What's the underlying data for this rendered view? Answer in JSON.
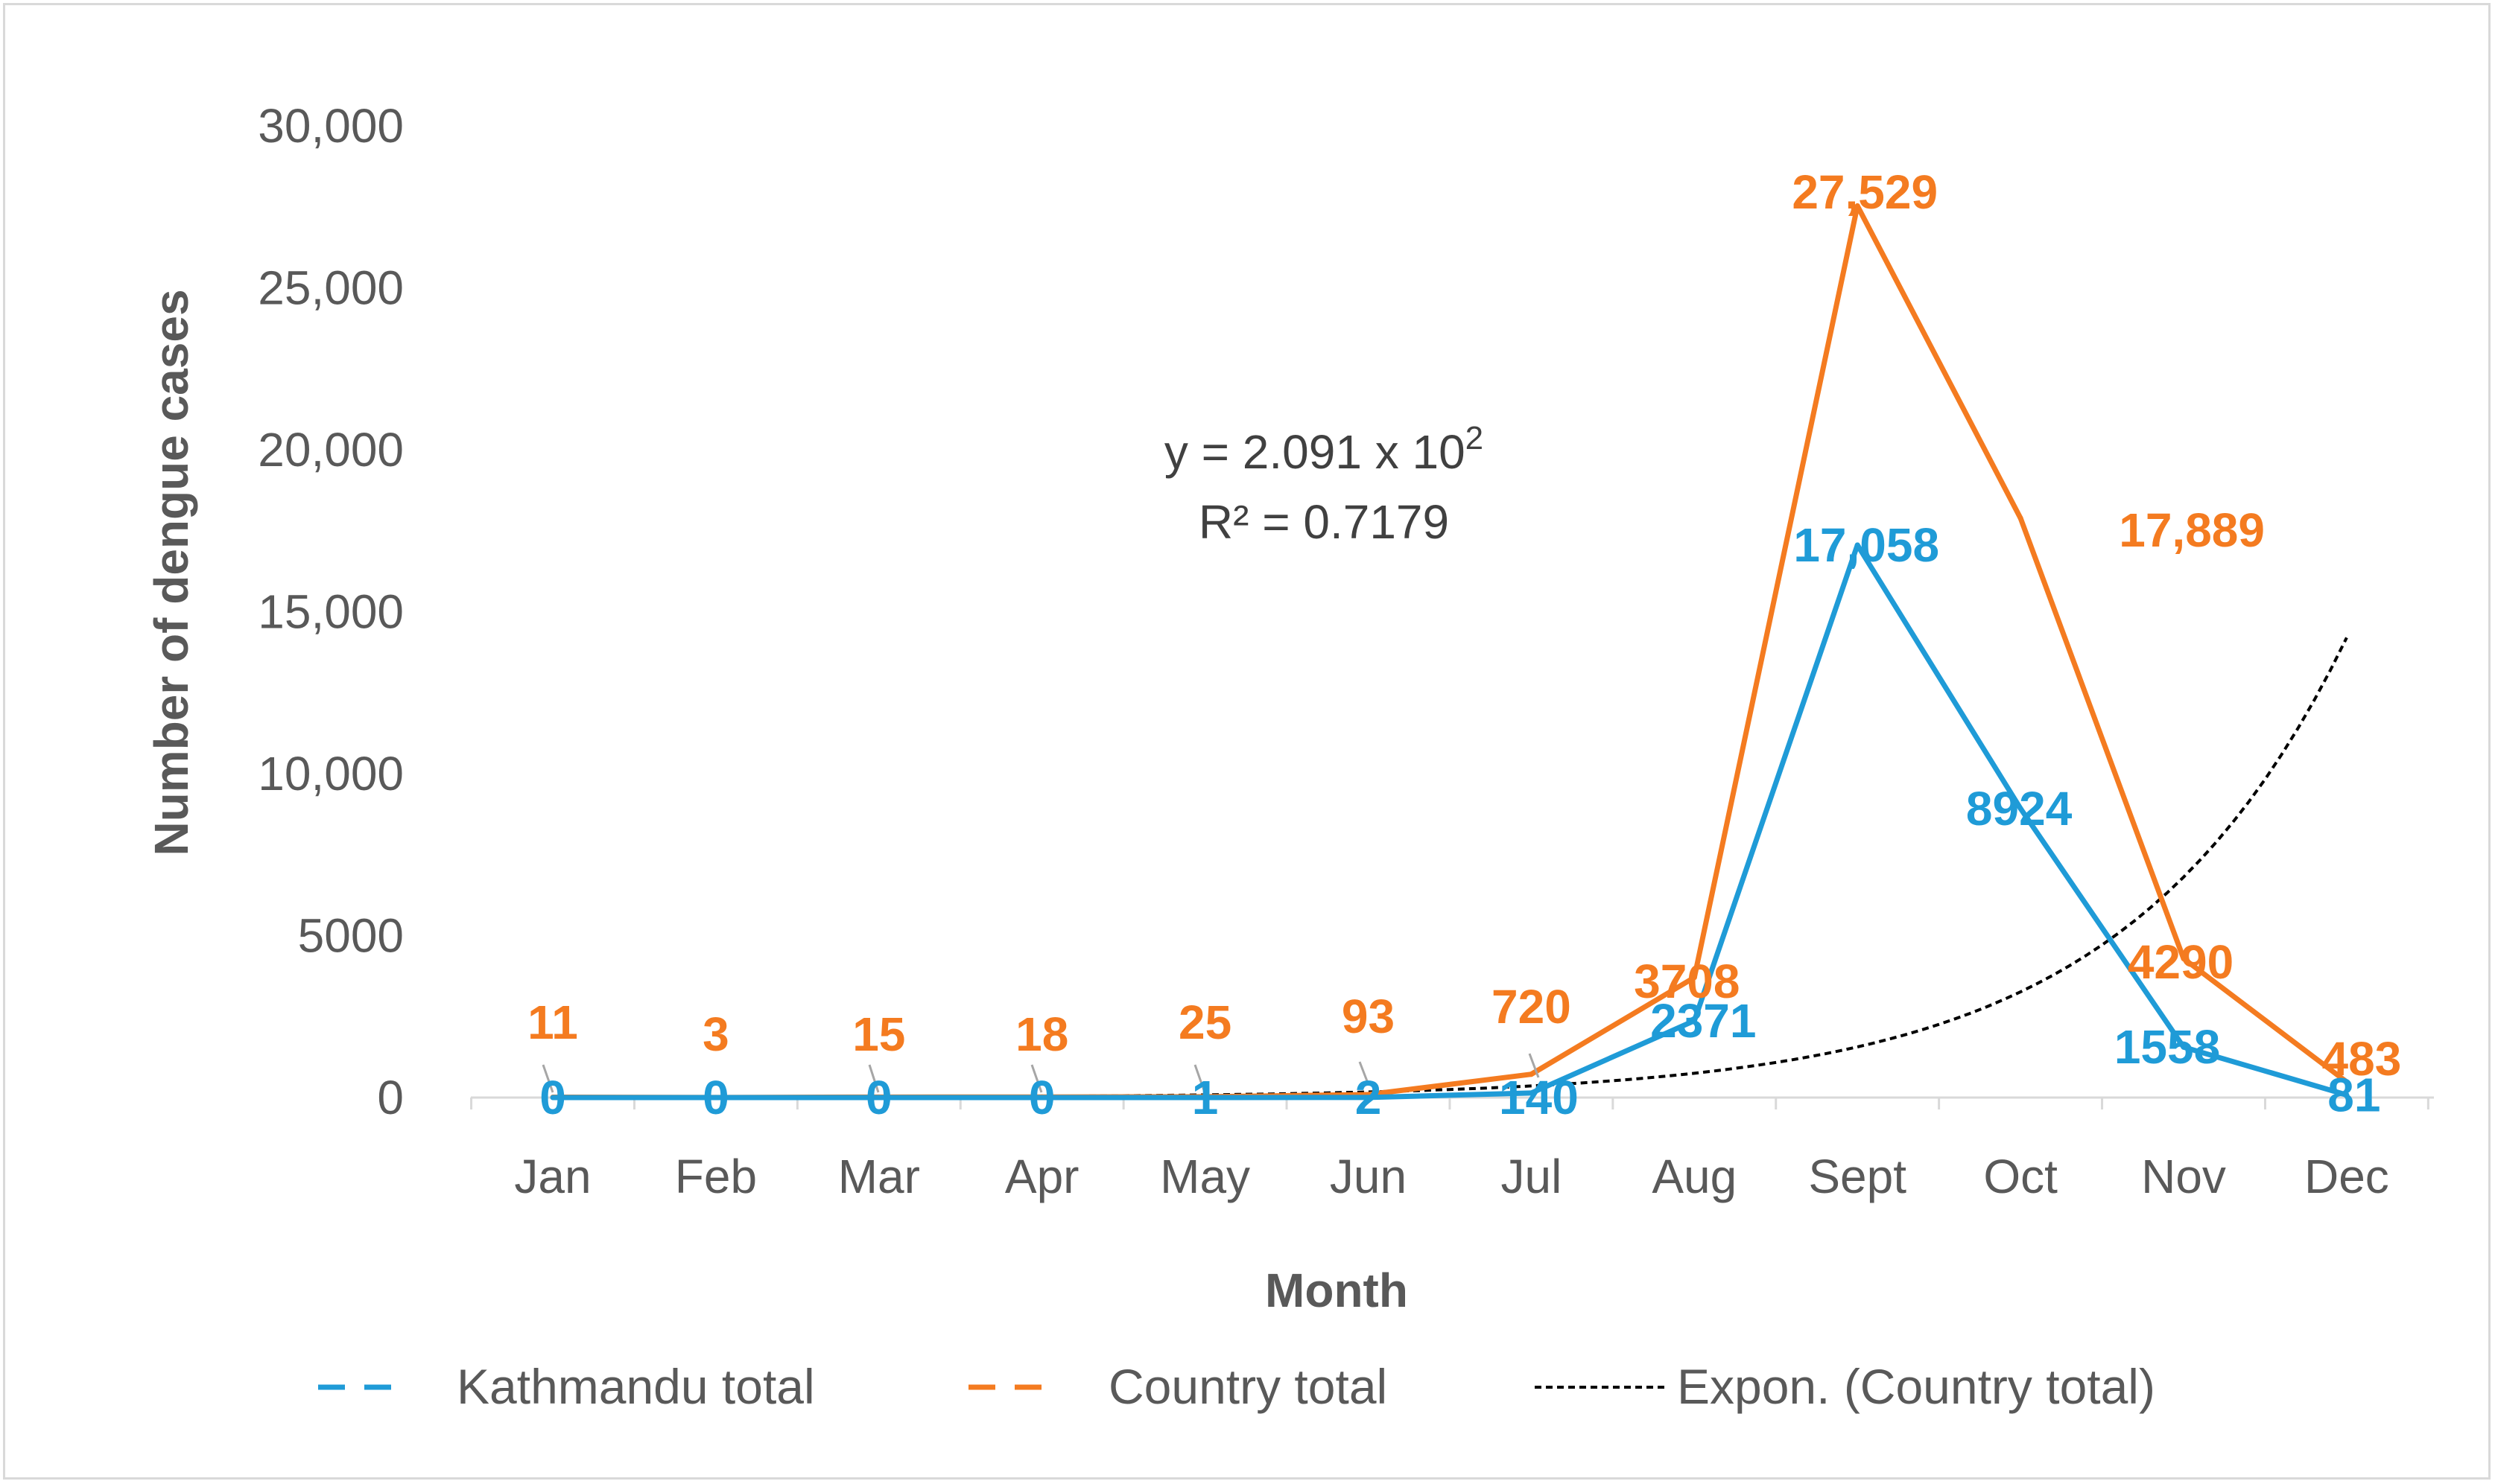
{
  "chart_data": {
    "type": "line",
    "title": "",
    "xlabel": "Month",
    "ylabel": "Number of dengue cases",
    "ylim": [
      0,
      30000
    ],
    "y_ticks": [
      0,
      5000,
      10000,
      15000,
      20000,
      25000,
      30000
    ],
    "y_tick_labels": [
      "0",
      "5000",
      "10,000",
      "15,000",
      "20,000",
      "25,000",
      "30,000"
    ],
    "categories": [
      "Jan",
      "Feb",
      "Mar",
      "Apr",
      "May",
      "Jun",
      "Jul",
      "Aug",
      "Sept",
      "Oct",
      "Nov",
      "Dec"
    ],
    "series": [
      {
        "name": "Kathmandu total",
        "color": "#1f9bd7",
        "line_style": "solid",
        "values": [
          0,
          0,
          0,
          0,
          1,
          2,
          140,
          2371,
          17058,
          8924,
          1558,
          81
        ],
        "labels": [
          "0",
          "0",
          "0",
          "0",
          "1",
          "2",
          "140",
          "2371",
          "17,058",
          "8924",
          "1558",
          "81"
        ]
      },
      {
        "name": "Country total",
        "color": "#f47b20",
        "line_style": "solid",
        "values": [
          11,
          3,
          15,
          18,
          25,
          93,
          720,
          3708,
          27529,
          17889,
          4290,
          483
        ],
        "labels": [
          "11",
          "3",
          "15",
          "18",
          "25",
          "93",
          "720",
          "3708",
          "27,529",
          "17,889",
          "4290",
          "483"
        ]
      },
      {
        "name": "Expon. (Country total)",
        "color": "#000000",
        "line_style": "dotted",
        "trendline_of": "Country total",
        "model": "exponential"
      }
    ],
    "annotation": {
      "equation_prefix": "y = 2.091 x 10",
      "equation_superscript": "2",
      "r_squared": "R² = 0.7179"
    },
    "legend": {
      "position": "bottom",
      "items": [
        "Kathmandu total",
        "Country total",
        "Expon. (Country total)"
      ]
    },
    "grid": false
  }
}
